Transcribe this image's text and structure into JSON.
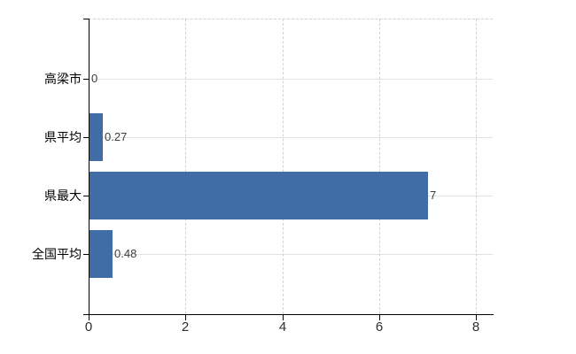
{
  "chart_data": {
    "type": "bar",
    "orientation": "horizontal",
    "title": "",
    "categories": [
      "高梁市",
      "県平均",
      "県最大",
      "全国平均"
    ],
    "values": [
      0,
      0.27,
      7,
      0.48
    ],
    "value_labels": [
      "0",
      "0.27",
      "7",
      "0.48"
    ],
    "x_ticks": [
      "0",
      "2",
      "4",
      "6",
      "8"
    ],
    "x_tick_values": [
      0,
      2,
      4,
      6,
      8
    ],
    "xlim": [
      0,
      8.35
    ],
    "grid": true,
    "legend": "none",
    "colors": {
      "bar": "#406da5",
      "h_gridline": "#dee4de",
      "v_gridline": "#d2d2d2",
      "axis": "#000000",
      "category_label": "#000000",
      "tick_label": "#2e2e2e",
      "value_label": "#3c3c3c",
      "background": "#ffffff"
    }
  }
}
